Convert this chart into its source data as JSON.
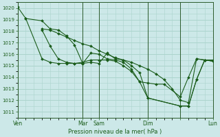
{
  "background_color": "#cce8e8",
  "grid_color": "#aad4cc",
  "line_color": "#1a5c1a",
  "marker_color": "#1a5c1a",
  "xlabel": "Pression niveau de la mer( hPa )",
  "ylim": [
    1010.5,
    1020.5
  ],
  "yticks": [
    1011,
    1012,
    1013,
    1014,
    1015,
    1016,
    1017,
    1018,
    1019,
    1020
  ],
  "xlim": [
    0,
    48
  ],
  "vlines": [
    0,
    16,
    20,
    32,
    40,
    48
  ],
  "xtick_positions": [
    0,
    16,
    20,
    32,
    40,
    48
  ],
  "xtick_labels": [
    "Ven",
    "Mar",
    "Sam",
    "Dim",
    "",
    "Lun"
  ],
  "series": [
    {
      "x": [
        0,
        2,
        6,
        8,
        10,
        12,
        14,
        16,
        18,
        20,
        22,
        24,
        26,
        28,
        30,
        32,
        40,
        42,
        44,
        46,
        48
      ],
      "y": [
        1020.1,
        1019.1,
        1018.9,
        1018.2,
        1018.1,
        1017.6,
        1016.8,
        1015.2,
        1015.3,
        1015.2,
        1016.1,
        1015.6,
        1015.5,
        1015.0,
        1014.4,
        1012.2,
        1011.5,
        1011.5,
        1013.8,
        1015.5,
        1015.4
      ]
    },
    {
      "x": [
        6,
        8,
        10,
        12,
        14,
        16,
        18,
        20,
        22,
        24,
        26,
        28,
        30,
        32,
        34,
        36,
        38,
        40,
        42,
        44,
        46,
        48
      ],
      "y": [
        1018.2,
        1018.1,
        1017.8,
        1017.5,
        1017.2,
        1016.9,
        1016.7,
        1016.3,
        1016.0,
        1015.7,
        1015.5,
        1015.3,
        1015.0,
        1014.7,
        1014.3,
        1013.8,
        1013.0,
        1012.0,
        1011.8,
        1015.6,
        1015.5,
        1015.4
      ]
    },
    {
      "x": [
        6,
        8,
        10,
        12,
        14,
        16,
        18,
        20,
        22,
        24,
        26,
        28,
        30,
        32,
        34,
        36,
        40,
        42,
        44,
        46,
        48
      ],
      "y": [
        1018.1,
        1016.7,
        1015.6,
        1015.3,
        1015.2,
        1015.2,
        1016.1,
        1016.0,
        1015.6,
        1015.5,
        1015.3,
        1014.7,
        1013.6,
        1013.5,
        1013.4,
        1013.4,
        1012.3,
        1014.0,
        1015.6,
        1015.5,
        1015.4
      ]
    },
    {
      "x": [
        2,
        6,
        8,
        10,
        12,
        14,
        16,
        18,
        20,
        22,
        24,
        26,
        28,
        30,
        32,
        40,
        42,
        44,
        46,
        48
      ],
      "y": [
        1019.1,
        1015.6,
        1015.3,
        1015.2,
        1015.2,
        1015.2,
        1015.3,
        1015.5,
        1015.5,
        1015.5,
        1015.4,
        1015.0,
        1014.5,
        1013.6,
        1012.2,
        1011.5,
        1011.5,
        1013.8,
        1015.5,
        1015.5
      ]
    }
  ]
}
